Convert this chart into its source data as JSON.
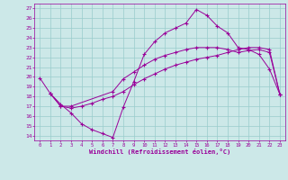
{
  "bg_color": "#cce8e8",
  "grid_color": "#99cccc",
  "line_color": "#990099",
  "xlabel": "Windchill (Refroidissement éolien,°C)",
  "xlim": [
    -0.5,
    23.5
  ],
  "ylim": [
    13.5,
    27.5
  ],
  "yticks": [
    14,
    15,
    16,
    17,
    18,
    19,
    20,
    21,
    22,
    23,
    24,
    25,
    26,
    27
  ],
  "xticks": [
    0,
    1,
    2,
    3,
    4,
    5,
    6,
    7,
    8,
    9,
    10,
    11,
    12,
    13,
    14,
    15,
    16,
    17,
    18,
    19,
    20,
    21,
    22,
    23
  ],
  "line1_x": [
    0,
    1,
    2,
    3,
    4,
    5,
    6,
    7,
    8,
    9,
    10,
    11,
    12,
    13,
    14,
    15,
    16,
    17,
    18,
    19,
    20,
    21,
    22,
    23
  ],
  "line1_y": [
    19.9,
    18.3,
    17.2,
    16.3,
    15.2,
    14.6,
    14.2,
    13.8,
    16.9,
    19.5,
    22.3,
    23.6,
    24.5,
    25.0,
    25.5,
    26.9,
    26.3,
    25.2,
    24.5,
    23.0,
    22.8,
    22.3,
    20.8,
    18.2
  ],
  "line2_x": [
    1,
    2,
    3,
    7,
    8,
    9,
    10,
    11,
    12,
    13,
    14,
    15,
    16,
    17,
    18,
    19,
    20,
    21,
    22,
    23
  ],
  "line2_y": [
    18.3,
    17.0,
    17.0,
    18.5,
    19.8,
    20.5,
    21.2,
    21.8,
    22.2,
    22.5,
    22.8,
    23.0,
    23.0,
    23.0,
    22.8,
    22.5,
    22.7,
    22.8,
    22.5,
    18.2
  ],
  "line3_x": [
    1,
    2,
    3,
    4,
    5,
    6,
    7,
    8,
    9,
    10,
    11,
    12,
    13,
    14,
    15,
    16,
    17,
    18,
    19,
    20,
    21,
    22,
    23
  ],
  "line3_y": [
    18.3,
    17.0,
    16.8,
    17.0,
    17.3,
    17.7,
    18.0,
    18.5,
    19.2,
    19.8,
    20.3,
    20.8,
    21.2,
    21.5,
    21.8,
    22.0,
    22.2,
    22.5,
    22.8,
    23.0,
    23.0,
    22.8,
    18.2
  ]
}
